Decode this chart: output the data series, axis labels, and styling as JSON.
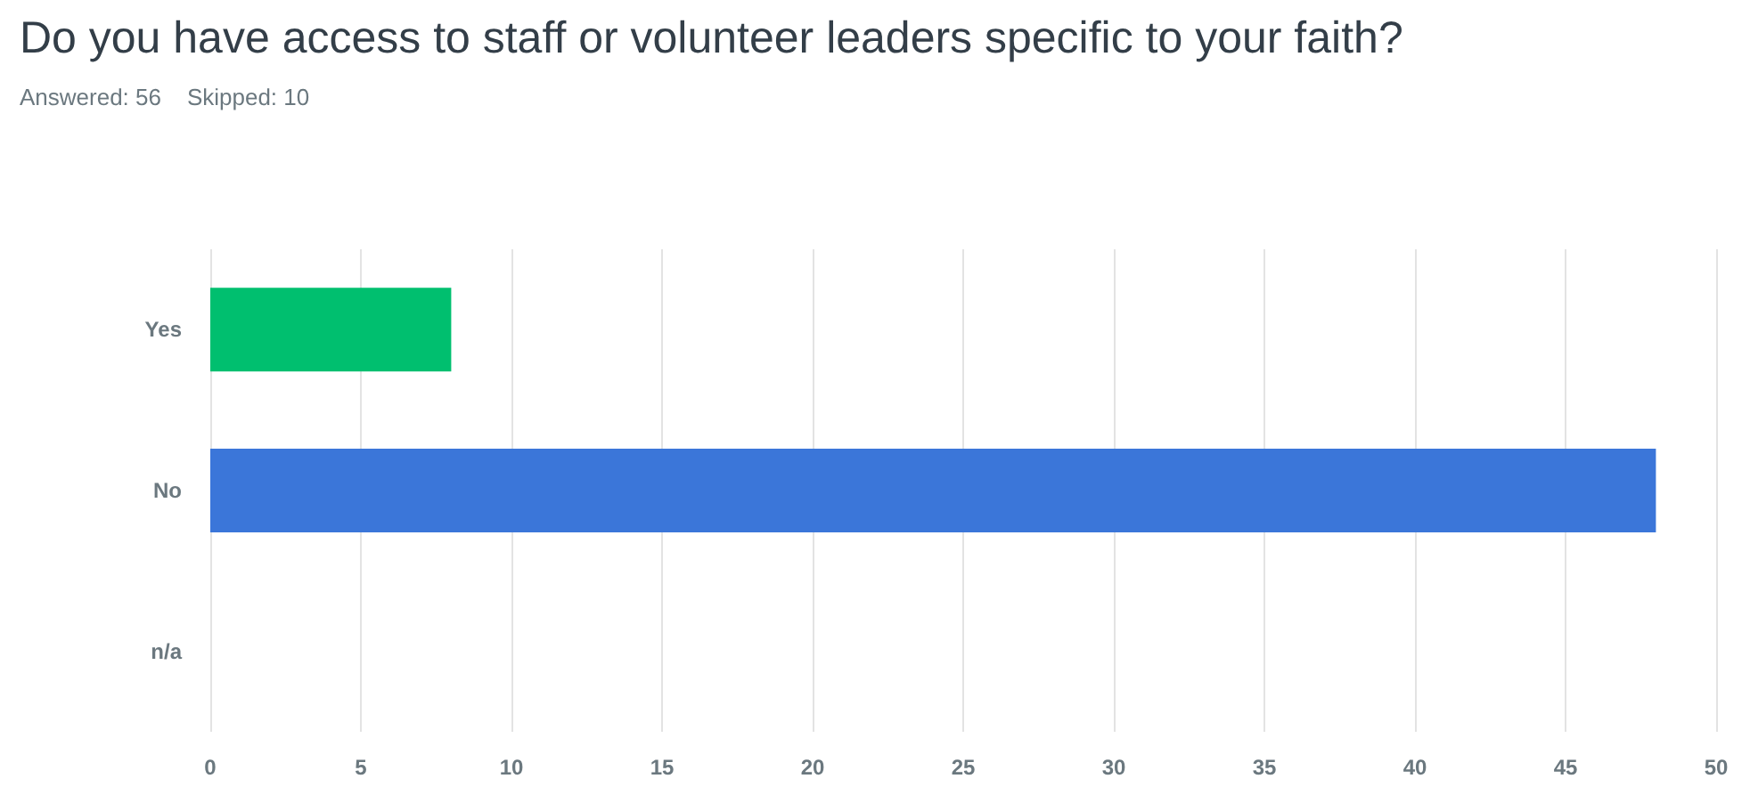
{
  "chart_data": {
    "type": "bar",
    "orientation": "horizontal",
    "title": "Do you have access to staff or volunteer leaders specific to your faith?",
    "subtitle": "Answered: 56    Skipped: 10",
    "categories": [
      "Yes",
      "No",
      "n/a"
    ],
    "values": [
      8,
      48,
      0
    ],
    "colors": [
      "#00bf6f",
      "#3b76d9",
      null
    ],
    "xlim": [
      0,
      50
    ],
    "xticks": [
      0,
      5,
      10,
      15,
      20,
      25,
      30,
      35,
      40,
      45,
      50
    ],
    "grid": "x"
  }
}
